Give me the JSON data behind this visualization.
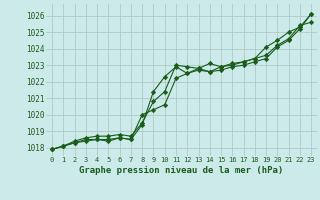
{
  "title": "Graphe pression niveau de la mer (hPa)",
  "bg_color": "#cdeaea",
  "grid_color": "#b0c8c8",
  "line_color": "#1a5c1a",
  "xlim": [
    -0.5,
    23.5
  ],
  "ylim": [
    1017.5,
    1026.7
  ],
  "yticks": [
    1018,
    1019,
    1020,
    1021,
    1022,
    1023,
    1024,
    1025,
    1026
  ],
  "xticks": [
    0,
    1,
    2,
    3,
    4,
    5,
    6,
    7,
    8,
    9,
    10,
    11,
    12,
    13,
    14,
    15,
    16,
    17,
    18,
    19,
    20,
    21,
    22,
    23
  ],
  "line1_x": [
    0,
    1,
    2,
    3,
    4,
    5,
    6,
    7,
    8,
    9,
    10,
    11,
    12,
    13,
    14,
    15,
    16,
    17,
    18,
    19,
    20,
    21,
    22,
    23
  ],
  "line1": [
    1017.9,
    1018.1,
    1018.4,
    1018.6,
    1018.7,
    1018.7,
    1018.8,
    1018.7,
    1019.5,
    1020.8,
    1021.4,
    1023.0,
    1022.9,
    1022.8,
    1022.6,
    1022.7,
    1022.9,
    1023.0,
    1023.2,
    1023.4,
    1024.1,
    1024.5,
    1025.2,
    1026.1
  ],
  "line2_x": [
    0,
    1,
    2,
    3,
    4,
    5,
    6,
    7,
    8,
    9,
    10,
    11,
    12,
    13,
    14,
    15,
    16,
    17,
    18,
    19,
    20,
    21,
    22,
    23
  ],
  "line2": [
    1017.9,
    1018.1,
    1018.3,
    1018.5,
    1018.5,
    1018.5,
    1018.6,
    1018.5,
    1020.0,
    1020.3,
    1020.6,
    1022.2,
    1022.5,
    1022.7,
    1022.6,
    1022.9,
    1023.0,
    1023.2,
    1023.4,
    1024.1,
    1024.5,
    1025.0,
    1025.3,
    1026.1
  ],
  "line3_x": [
    0,
    1,
    2,
    3,
    4,
    5,
    6,
    7,
    8,
    9,
    10,
    11,
    12,
    13,
    14,
    15,
    16,
    17,
    18,
    19,
    20,
    21,
    22,
    23
  ],
  "line3": [
    1017.9,
    1018.1,
    1018.3,
    1018.4,
    1018.5,
    1018.4,
    1018.6,
    1018.5,
    1019.4,
    1021.4,
    1022.3,
    1022.9,
    1022.5,
    1022.8,
    1023.1,
    1022.9,
    1023.1,
    1023.2,
    1023.4,
    1023.6,
    1024.2,
    1024.6,
    1025.4,
    1025.6
  ],
  "yticklabels": [
    "1018",
    "1019",
    "1020",
    "1021",
    "1022",
    "1023",
    "1024",
    "1025",
    "1026"
  ]
}
